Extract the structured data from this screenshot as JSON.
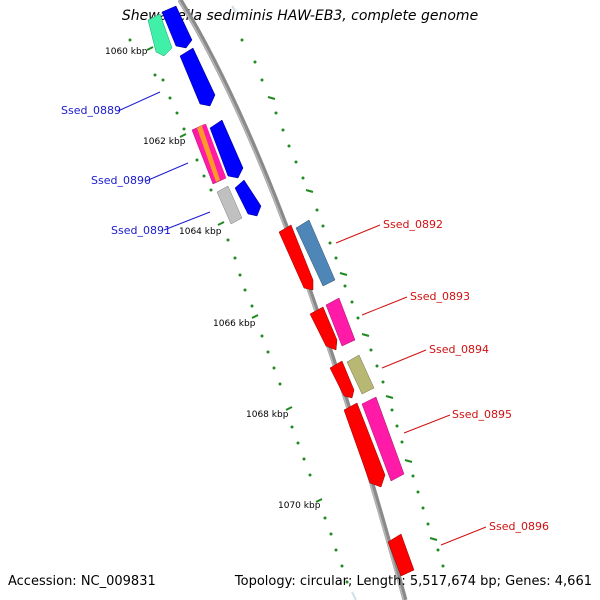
{
  "title": "Shewanella sediminis HAW-EB3, complete genome",
  "footer": {
    "accession": "Accession: NC_009831",
    "summary": "Topology: circular; Length: 5,517,674 bp; Genes: 4,661"
  },
  "colors": {
    "backbone": "#8a8a8a",
    "tick": "#1f8a1f",
    "reverse_label": "#1a1ad0",
    "forward_label": "#d01010",
    "red": "#ff0000",
    "blue": "#0000ff",
    "teal": "#4f86b8",
    "magenta": "#ff1aa8",
    "olive": "#b8b874",
    "gray": "#c0c0c0",
    "aqua": "#40f0a8",
    "orange": "#ff9a2a"
  },
  "scale_labels": [
    "1060 kbp",
    "1062 kbp",
    "1064 kbp",
    "1066 kbp",
    "1068 kbp",
    "1070 kbp"
  ],
  "gene_labels": {
    "reverse": [
      "Ssed_0889",
      "Ssed_0890",
      "Ssed_0891"
    ],
    "forward": [
      "Ssed_0892",
      "Ssed_0893",
      "Ssed_0894",
      "Ssed_0895",
      "Ssed_0896"
    ]
  }
}
